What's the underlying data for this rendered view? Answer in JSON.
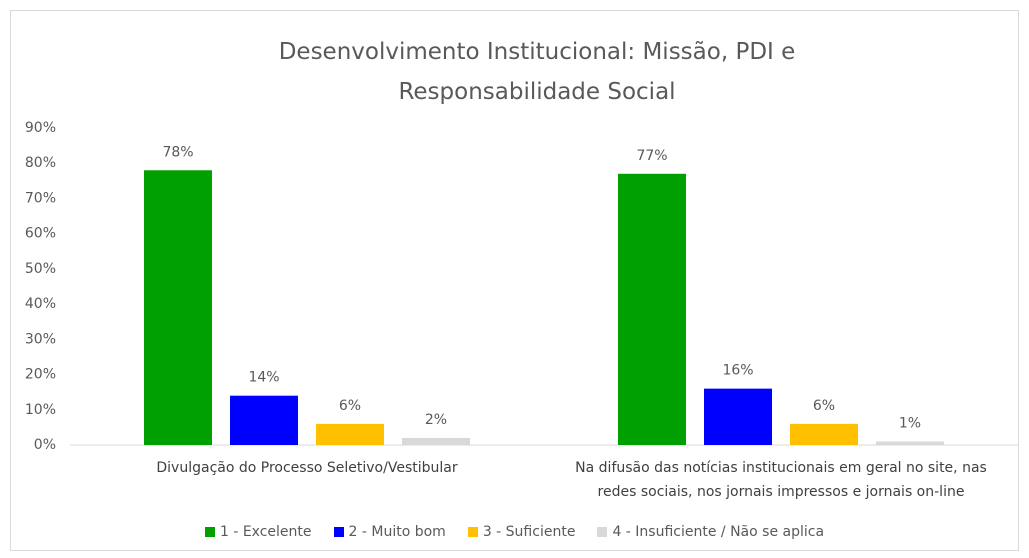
{
  "chart_data": {
    "type": "bar",
    "title": "Desenvolvimento Institucional: Missão, PDI e Responsabilidade Social",
    "categories": [
      "Divulgação do Processo Seletivo/Vestibular",
      "Na difusão das notícias institucionais em geral no site, nas redes sociais, nos jornais impressos e jornais on-line"
    ],
    "series": [
      {
        "name": "1 - Excelente",
        "color": "#00a000",
        "values": [
          78,
          77
        ],
        "value_labels": [
          "78%",
          "77%"
        ]
      },
      {
        "name": "2 - Muito bom",
        "color": "#0000ff",
        "values": [
          14,
          16
        ],
        "value_labels": [
          "14%",
          "16%"
        ]
      },
      {
        "name": "3 - Suficiente",
        "color": "#ffc000",
        "values": [
          6,
          6
        ],
        "value_labels": [
          "6%",
          "6%"
        ]
      },
      {
        "name": "4 - Insuficiente / Não se aplica",
        "color": "#d9d9d9",
        "values": [
          2,
          1
        ],
        "value_labels": [
          "2%",
          "1%"
        ]
      }
    ],
    "ylim": [
      0,
      90
    ],
    "yticks": [
      {
        "value": 0,
        "label": "0%"
      },
      {
        "value": 10,
        "label": "10%"
      },
      {
        "value": 20,
        "label": "20%"
      },
      {
        "value": 30,
        "label": "30%"
      },
      {
        "value": 40,
        "label": "40%"
      },
      {
        "value": 50,
        "label": "50%"
      },
      {
        "value": 60,
        "label": "60%"
      },
      {
        "value": 70,
        "label": "70%"
      },
      {
        "value": 80,
        "label": "80%"
      },
      {
        "value": 90,
        "label": "90%"
      }
    ],
    "grid": false,
    "legend": "bottom"
  }
}
